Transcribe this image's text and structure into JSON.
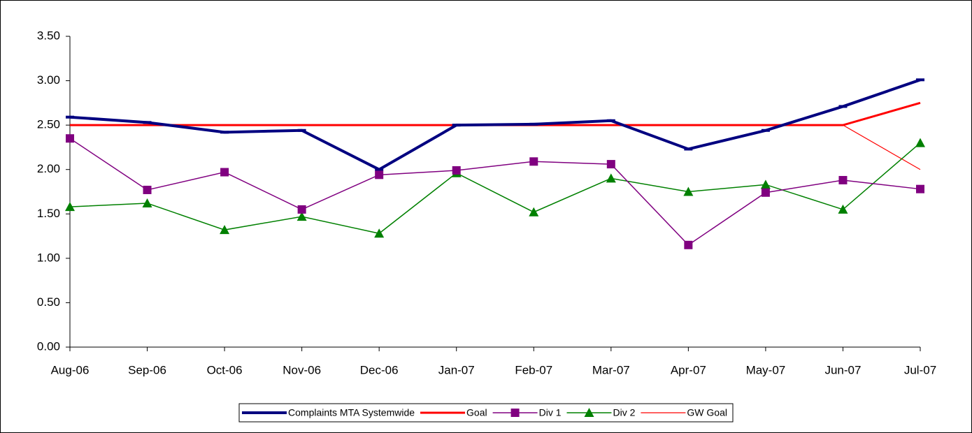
{
  "chart_data": {
    "type": "line",
    "categories": [
      "Aug-06",
      "Sep-06",
      "Oct-06",
      "Nov-06",
      "Dec-06",
      "Jan-07",
      "Feb-07",
      "Mar-07",
      "Apr-07",
      "May-07",
      "Jun-07",
      "Jul-07"
    ],
    "ylim": [
      0,
      3.5
    ],
    "yticks": [
      {
        "value": 0,
        "label": "0.00"
      },
      {
        "value": 0.5,
        "label": "0.50"
      },
      {
        "value": 1,
        "label": "1.00"
      },
      {
        "value": 1.5,
        "label": "1.50"
      },
      {
        "value": 2,
        "label": "2.00"
      },
      {
        "value": 2.5,
        "label": "2.50"
      },
      {
        "value": 3,
        "label": "3.00"
      },
      {
        "value": 3.5,
        "label": "3.50"
      }
    ],
    "grid": false,
    "legend": "bottom",
    "series": [
      {
        "name": "Complaints MTA Systemwide",
        "color": "#000080",
        "marker": "dash",
        "values": [
          2.59,
          2.53,
          2.42,
          2.44,
          2.0,
          2.5,
          2.51,
          2.55,
          2.23,
          2.44,
          2.71,
          3.01
        ]
      },
      {
        "name": "Goal",
        "color": "#ff0000",
        "marker": "none",
        "values": [
          2.5,
          2.5,
          2.5,
          2.5,
          2.5,
          2.5,
          2.5,
          2.5,
          2.5,
          2.5,
          2.5,
          2.75
        ]
      },
      {
        "name": "Div 1",
        "color": "#800080",
        "marker": "square",
        "values": [
          2.35,
          1.77,
          1.97,
          1.55,
          1.94,
          1.99,
          2.09,
          2.06,
          1.15,
          1.74,
          1.88,
          1.78
        ]
      },
      {
        "name": "Div 2",
        "color": "#008000",
        "marker": "triangle",
        "values": [
          1.58,
          1.62,
          1.32,
          1.47,
          1.28,
          1.96,
          1.52,
          1.9,
          1.75,
          1.83,
          1.55,
          2.3
        ]
      },
      {
        "name": "GW Goal",
        "color": "#ff0000",
        "marker": "none",
        "values": [
          2.5,
          2.5,
          2.5,
          2.5,
          2.5,
          2.5,
          2.5,
          2.5,
          2.5,
          2.5,
          2.5,
          2.0
        ]
      }
    ]
  }
}
